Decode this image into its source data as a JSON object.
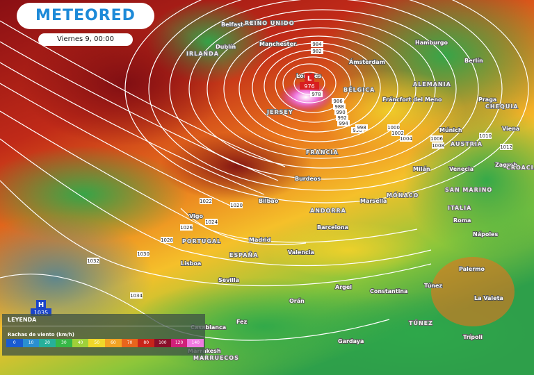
{
  "header": {
    "brand": "METEORED",
    "date": "Viernes 9, 00:00"
  },
  "legend": {
    "title": "LEYENDA",
    "subtitle": "Rachas de viento (km/h)",
    "scale": [
      0,
      10,
      20,
      30,
      40,
      50,
      60,
      70,
      80,
      100,
      120,
      140
    ]
  },
  "pressure_centers": [
    {
      "type": "H",
      "value": 1035
    },
    {
      "type": "L",
      "value": 976
    }
  ],
  "isobar_labels": [
    984,
    982,
    978,
    986,
    988,
    990,
    992,
    994,
    996,
    998,
    1000,
    1002,
    1004,
    1006,
    1008,
    1010,
    1012,
    1020,
    1022,
    1024,
    1026,
    1028,
    1030,
    1032,
    1034
  ],
  "places": [
    "REINO UNIDO",
    "IRLANDA",
    "Dublín",
    "Belfast",
    "Manchester",
    "Londres",
    "Ámsterdam",
    "Hamburgo",
    "Berlín",
    "BÉLGICA",
    "ALEMANIA",
    "Fráncfort del Meno",
    "Praga",
    "CHEQUIA",
    "Viena",
    "AUSTRIA",
    "Múnich",
    "Zagreb",
    "CROACIA",
    "Venecia",
    "Milán",
    "SAN MARINO",
    "MÓNACO",
    "Marsella",
    "FRANCIA",
    "JERSEY",
    "Burdeos",
    "ANDORRA",
    "Barcelona",
    "Bilbao",
    "Vigo",
    "Madrid",
    "PORTUGAL",
    "Lisboa",
    "ESPAÑA",
    "Valencia",
    "Sevilla",
    "ITALIA",
    "Roma",
    "Nápoles",
    "Palermo",
    "Orán",
    "Argel",
    "Constantina",
    "Túnez",
    "TÚNEZ",
    "Trípoli",
    "La Valeta",
    "Fez",
    "Casablanca",
    "Marrakesh",
    "MARRUECOS",
    "Gardaya"
  ]
}
